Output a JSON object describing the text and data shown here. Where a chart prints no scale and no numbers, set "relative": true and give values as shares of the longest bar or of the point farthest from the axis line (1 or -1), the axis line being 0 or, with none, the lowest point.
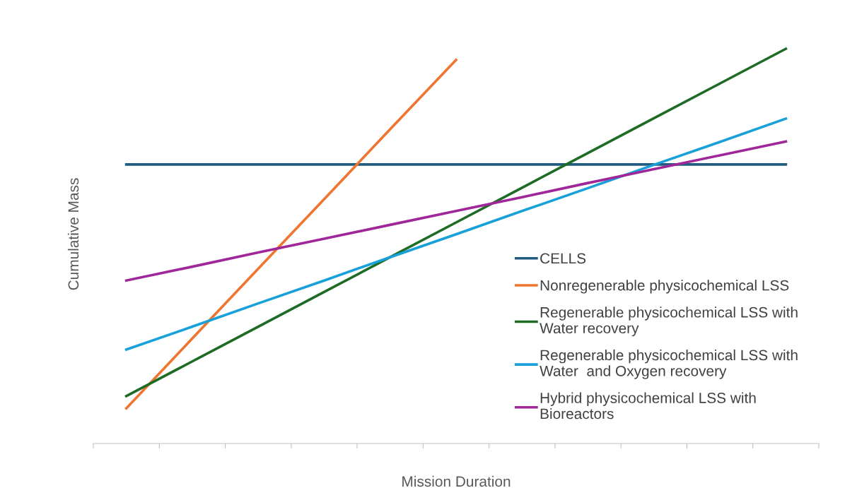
{
  "chart_data": {
    "type": "line",
    "relative": true,
    "xlabel": "Mission Duration",
    "ylabel": "Cumulative Mass",
    "categories": [
      null,
      null,
      null,
      null,
      null,
      null,
      null,
      null,
      null,
      null,
      null
    ],
    "series": [
      {
        "name": "CELLS",
        "color": "#1f5c80",
        "values": [
          0.707,
          0.707,
          0.707,
          0.707,
          0.707,
          0.707,
          0.707,
          0.707,
          0.707,
          0.707,
          0.707
        ]
      },
      {
        "name": "Nonregenerable physicochemical LSS",
        "color": "#ee7630",
        "values": [
          0.089,
          0.266,
          0.443,
          0.619,
          0.796,
          0.972,
          null,
          null,
          null,
          null,
          null
        ]
      },
      {
        "name": "Regenerable physicochemical LSS with Water recovery",
        "color": "#1e6b25",
        "values": [
          0.12,
          0.208,
          0.296,
          0.384,
          0.472,
          0.56,
          0.648,
          0.736,
          0.824,
          0.912,
          1.0
        ]
      },
      {
        "name": "Regenerable physicochemical LSS with Water  and Oxygen recovery",
        "color": "#18a0d8",
        "values": [
          0.238,
          0.296,
          0.355,
          0.413,
          0.472,
          0.53,
          0.589,
          0.647,
          0.706,
          0.764,
          0.823
        ]
      },
      {
        "name": "Hybrid physicochemical LSS with Bioreactors",
        "color": "#a0279a",
        "values": [
          0.413,
          0.448,
          0.484,
          0.519,
          0.554,
          0.589,
          0.624,
          0.66,
          0.695,
          0.73,
          0.765
        ]
      }
    ],
    "legend": "lower right",
    "tick_labels": false,
    "marker": "none",
    "line_style": "solid"
  }
}
